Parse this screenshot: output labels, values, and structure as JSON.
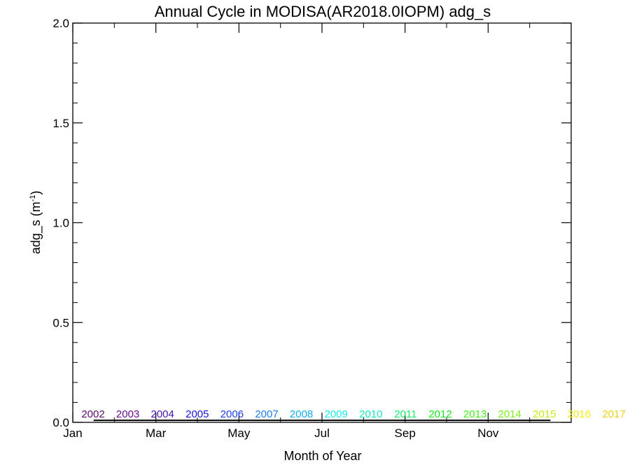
{
  "chart_data": {
    "type": "line",
    "title": "Annual Cycle in MODISA(AR2018.0IOPM) adg_s",
    "xlabel": "Month of Year",
    "ylabel_base": "adg_s (m",
    "ylabel_sup": "-1",
    "ylabel_close": ")",
    "xlim": [
      1,
      13
    ],
    "ylim": [
      0.0,
      2.0
    ],
    "x_ticks": [
      {
        "value": 1,
        "label": "Jan"
      },
      {
        "value": 3,
        "label": "Mar"
      },
      {
        "value": 5,
        "label": "May"
      },
      {
        "value": 7,
        "label": "Jul"
      },
      {
        "value": 9,
        "label": "Sep"
      },
      {
        "value": 11,
        "label": "Nov"
      }
    ],
    "x_minor_ticks": [
      2,
      4,
      6,
      8,
      10,
      12
    ],
    "y_ticks": [
      {
        "value": 0.0,
        "label": "0.0"
      },
      {
        "value": 0.5,
        "label": "0.5"
      },
      {
        "value": 1.0,
        "label": "1.0"
      },
      {
        "value": 1.5,
        "label": "1.5"
      },
      {
        "value": 2.0,
        "label": "2.0"
      }
    ],
    "y_minor_step": 0.1,
    "legend_position": "bottom",
    "line": {
      "x": [
        1.5,
        12.5
      ],
      "y": [
        0.01,
        0.01
      ],
      "color": "#000000"
    },
    "years": [
      {
        "label": "2002",
        "color": "#5a0a6e"
      },
      {
        "label": "2003",
        "color": "#6a0a8c"
      },
      {
        "label": "2004",
        "color": "#4a10b4"
      },
      {
        "label": "2005",
        "color": "#1414d2"
      },
      {
        "label": "2006",
        "color": "#1e40e6"
      },
      {
        "label": "2007",
        "color": "#1e7ef0"
      },
      {
        "label": "2008",
        "color": "#10aef0"
      },
      {
        "label": "2009",
        "color": "#14ecf0"
      },
      {
        "label": "2010",
        "color": "#14e6c0"
      },
      {
        "label": "2011",
        "color": "#14ec6a"
      },
      {
        "label": "2012",
        "color": "#14e61e"
      },
      {
        "label": "2013",
        "color": "#3cf014"
      },
      {
        "label": "2014",
        "color": "#7ef014"
      },
      {
        "label": "2015",
        "color": "#beec14"
      },
      {
        "label": "2016",
        "color": "#f0ee14"
      },
      {
        "label": "2017",
        "color": "#f0d214"
      }
    ]
  }
}
